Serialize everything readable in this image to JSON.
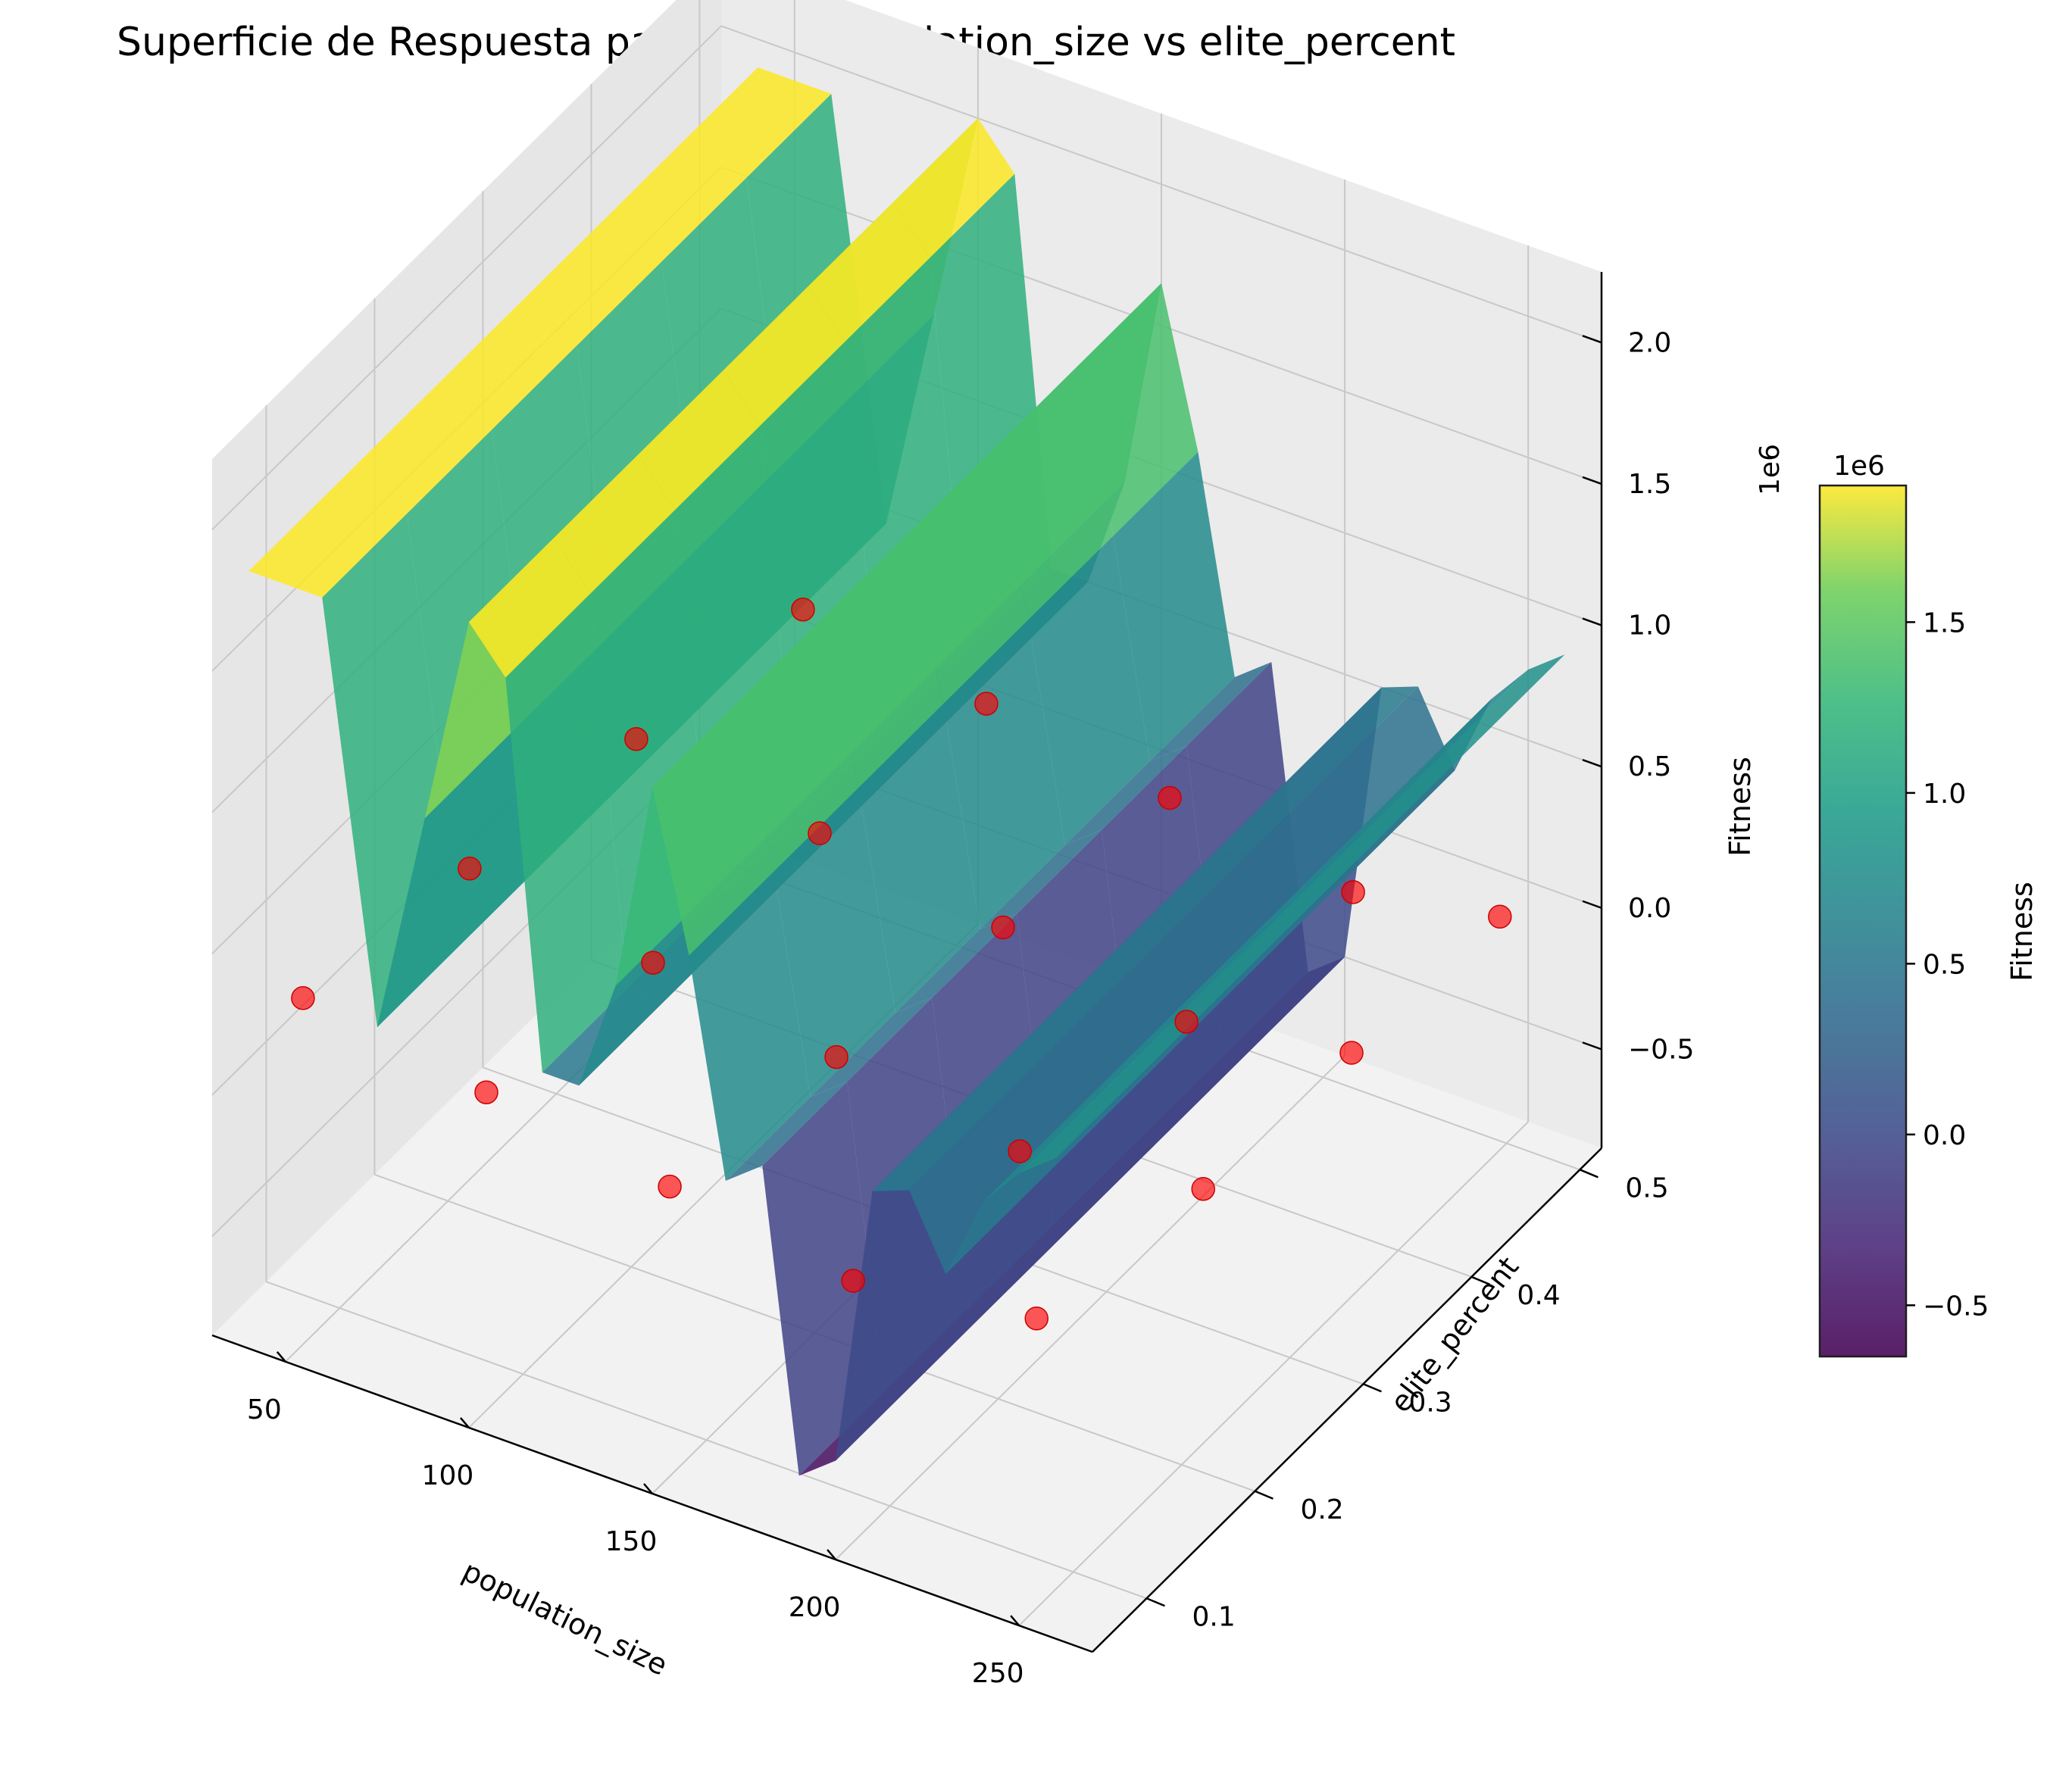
{
  "chart_data": {
    "type": "surface3d",
    "title": "Superficie de Respuesta para pr07: population_size vs elite_percent",
    "xlabel": "population_size",
    "ylabel": "elite_percent",
    "zlabel": "Fitness",
    "z_offset_label": "1e6",
    "xlim": [
      30,
      270
    ],
    "ylim": [
      0.05,
      0.52
    ],
    "zlim": [
      -0.85,
      2.25
    ],
    "x_ticks": [
      "50",
      "100",
      "150",
      "200",
      "250"
    ],
    "y_ticks": [
      "0.1",
      "0.2",
      "0.3",
      "0.4",
      "0.5"
    ],
    "z_ticks": [
      "−0.5",
      "0.0",
      "0.5",
      "1.0",
      "1.5",
      "2.0"
    ],
    "colormap": "viridis",
    "colorbar": {
      "label": "Fitness",
      "offset_label": "1e6",
      "range": [
        -0.65,
        1.9
      ],
      "ticks": [
        "−0.5",
        "0.0",
        "0.5",
        "1.0",
        "1.5"
      ]
    },
    "surface_profile": {
      "population_size": [
        40,
        60,
        75,
        88,
        100,
        110,
        120,
        130,
        140,
        150,
        160,
        170,
        180,
        190,
        200,
        210,
        220,
        230,
        240,
        250,
        260
      ],
      "fitness_1e6": [
        1.9,
        1.9,
        0.45,
        1.25,
        2.0,
        1.85,
        0.5,
        0.5,
        0.9,
        1.65,
        1.1,
        0.35,
        0.45,
        -0.6,
        -0.5,
        0.5,
        0.55,
        0.3,
        0.6,
        0.75,
        0.85
      ]
    },
    "sample_points": {
      "color": "#ff0000",
      "points": [
        {
          "population_size": 40,
          "elite_percent": 0.1,
          "fitness_1e6": 0.2
        },
        {
          "population_size": 50,
          "elite_percent": 0.22,
          "fitness_1e6": 0.25
        },
        {
          "population_size": 60,
          "elite_percent": 0.34,
          "fitness_1e6": 0.3
        },
        {
          "population_size": 70,
          "elite_percent": 0.46,
          "fitness_1e6": 0.35
        },
        {
          "population_size": 90,
          "elite_percent": 0.1,
          "fitness_1e6": 0.1
        },
        {
          "population_size": 100,
          "elite_percent": 0.22,
          "fitness_1e6": 0.15
        },
        {
          "population_size": 110,
          "elite_percent": 0.34,
          "fitness_1e6": 0.2
        },
        {
          "population_size": 120,
          "elite_percent": 0.46,
          "fitness_1e6": 0.25
        },
        {
          "population_size": 140,
          "elite_percent": 0.1,
          "fitness_1e6": 0.0
        },
        {
          "population_size": 150,
          "elite_percent": 0.22,
          "fitness_1e6": 0.05
        },
        {
          "population_size": 160,
          "elite_percent": 0.34,
          "fitness_1e6": 0.1
        },
        {
          "population_size": 170,
          "elite_percent": 0.46,
          "fitness_1e6": 0.15
        },
        {
          "population_size": 190,
          "elite_percent": 0.1,
          "fitness_1e6": -0.1
        },
        {
          "population_size": 200,
          "elite_percent": 0.22,
          "fitness_1e6": -0.05
        },
        {
          "population_size": 210,
          "elite_percent": 0.34,
          "fitness_1e6": 0.0
        },
        {
          "population_size": 220,
          "elite_percent": 0.46,
          "fitness_1e6": 0.05
        },
        {
          "population_size": 240,
          "elite_percent": 0.1,
          "fitness_1e6": 0.0
        },
        {
          "population_size": 250,
          "elite_percent": 0.22,
          "fitness_1e6": 0.05
        },
        {
          "population_size": 255,
          "elite_percent": 0.34,
          "fitness_1e6": 0.1
        },
        {
          "population_size": 260,
          "elite_percent": 0.46,
          "fitness_1e6": 0.15
        }
      ]
    },
    "grid": true
  }
}
